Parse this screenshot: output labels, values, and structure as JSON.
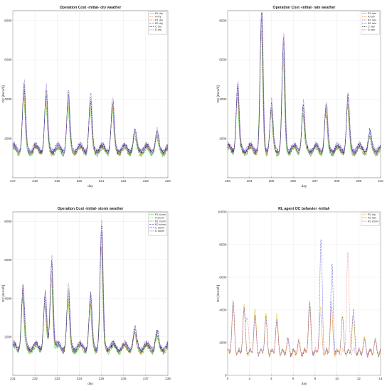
{
  "chart_data": [
    {
      "type": "line",
      "title": "Operation Cost -initial- dry weather",
      "xlabel": "day",
      "ylabel": "OC [Euro/h]",
      "xlim": [
        217,
        224
      ],
      "ylim": [
        0,
        8500
      ],
      "xticks": [
        217,
        218,
        219,
        220,
        221,
        222,
        223,
        224
      ],
      "yticks": [
        2000,
        4000,
        6000,
        8000
      ],
      "grid": true,
      "legend_position": "top-right",
      "series": [
        {
          "name": "RL dry",
          "color": "#2ecc2e",
          "dash": ""
        },
        {
          "name": "A dry",
          "color": "#e07a1f",
          "dash": "2,1"
        },
        {
          "name": "B1 dry",
          "color": "#444444",
          "dash": "0.8,0.8"
        },
        {
          "name": "B2 dry",
          "color": "#2b2bd9",
          "dash": "2,0.8,0.6,0.8"
        },
        {
          "name": "C dry",
          "color": "#111111",
          "dash": "1.5,1"
        },
        {
          "name": "D dry",
          "color": "#8a4fd6",
          "dash": "1,0.6"
        }
      ],
      "peaks": [
        {
          "x": 217.5,
          "y": 4400
        },
        {
          "x": 218.5,
          "y": 4100
        },
        {
          "x": 219.5,
          "y": 3900
        },
        {
          "x": 220.5,
          "y": 3750
        },
        {
          "x": 221.5,
          "y": 3600
        },
        {
          "x": 222.5,
          "y": 2150
        },
        {
          "x": 223.5,
          "y": 2100
        }
      ],
      "base": 1350
    },
    {
      "type": "line",
      "title": "Operation Cost -initial- rain weather",
      "xlabel": "day",
      "ylabel": "OC [Euro/h]",
      "xlim": [
        203,
        210
      ],
      "ylim": [
        0,
        8500
      ],
      "xticks": [
        203,
        204,
        205,
        206,
        207,
        208,
        209,
        210
      ],
      "yticks": [
        2000,
        4000,
        6000,
        8000
      ],
      "grid": true,
      "legend_position": "top-right",
      "series": [
        {
          "name": "RL rain",
          "color": "#2ecc2e",
          "dash": ""
        },
        {
          "name": "A rain",
          "color": "#e07a1f",
          "dash": "2,1"
        },
        {
          "name": "B1 rain",
          "color": "#444444",
          "dash": "0.8,0.8"
        },
        {
          "name": "B2 rain",
          "color": "#2b2bd9",
          "dash": "2,0.8,0.6,0.8"
        },
        {
          "name": "C rain",
          "color": "#111111",
          "dash": "1.5,1"
        },
        {
          "name": "D rain",
          "color": "#8a4fd6",
          "dash": "1,0.6"
        }
      ],
      "peaks": [
        {
          "x": 203.45,
          "y": 4450
        },
        {
          "x": 204.55,
          "y": 8100
        },
        {
          "x": 205.0,
          "y": 3450
        },
        {
          "x": 205.55,
          "y": 6600
        },
        {
          "x": 206.45,
          "y": 3450
        },
        {
          "x": 207.5,
          "y": 3400
        },
        {
          "x": 208.5,
          "y": 3800
        },
        {
          "x": 209.5,
          "y": 2150
        }
      ],
      "base": 1350
    },
    {
      "type": "line",
      "title": "Operation Cost -initial- storm weather",
      "xlabel": "day",
      "ylabel": "OC [Euro/h]",
      "xlim": [
        231,
        238
      ],
      "ylim": [
        0,
        8500
      ],
      "xticks": [
        231,
        232,
        233,
        234,
        235,
        236,
        237,
        238
      ],
      "yticks": [
        2000,
        4000,
        6000,
        8000
      ],
      "grid": true,
      "legend_position": "top-right",
      "series": [
        {
          "name": "RL storm",
          "color": "#2ecc2e",
          "dash": ""
        },
        {
          "name": "A storm",
          "color": "#e07a1f",
          "dash": "2,1"
        },
        {
          "name": "B1 storm",
          "color": "#444444",
          "dash": "0.8,0.8"
        },
        {
          "name": "B2 storm",
          "color": "#2b2bd9",
          "dash": "2,0.8,0.6,0.8"
        },
        {
          "name": "C storm",
          "color": "#111111",
          "dash": "1.5,1"
        },
        {
          "name": "D storm",
          "color": "#8a4fd6",
          "dash": "1,0.6"
        }
      ],
      "peaks": [
        {
          "x": 231.45,
          "y": 4300
        },
        {
          "x": 232.45,
          "y": 3950
        },
        {
          "x": 232.75,
          "y": 5750
        },
        {
          "x": 233.5,
          "y": 4150
        },
        {
          "x": 234.5,
          "y": 3850
        },
        {
          "x": 235.0,
          "y": 7300
        },
        {
          "x": 236.5,
          "y": 2200
        },
        {
          "x": 237.5,
          "y": 2050
        }
      ],
      "base": 1350
    },
    {
      "type": "line",
      "title": "RL agent OC behavior -initial-",
      "xlabel": "day",
      "ylabel": "OC [Euro/h]",
      "xlim": [
        0,
        14
      ],
      "ylim": [
        0,
        10000
      ],
      "xticks": [
        0,
        2,
        4,
        6,
        8,
        10,
        12,
        14
      ],
      "yticks": [
        0,
        2000,
        4000,
        6000,
        8000,
        10000
      ],
      "grid": true,
      "legend_position": "top-right",
      "series": [
        {
          "name": "RL dry",
          "color": "#e8c21a",
          "dash": "",
          "peaks": [
            {
              "x": 0.5,
              "y": 4300
            },
            {
              "x": 1.5,
              "y": 4100
            },
            {
              "x": 2.5,
              "y": 3900
            },
            {
              "x": 3.5,
              "y": 3700
            },
            {
              "x": 4.5,
              "y": 3600
            },
            {
              "x": 5.5,
              "y": 2100
            },
            {
              "x": 6.5,
              "y": 2050
            },
            {
              "x": 7.5,
              "y": 4300
            },
            {
              "x": 8.5,
              "y": 4000
            },
            {
              "x": 9.5,
              "y": 3900
            },
            {
              "x": 10.5,
              "y": 3600
            },
            {
              "x": 11.5,
              "y": 3500
            },
            {
              "x": 12.5,
              "y": 2100
            },
            {
              "x": 13.5,
              "y": 2050
            }
          ]
        },
        {
          "name": "RL rain",
          "color": "#2b2bd9",
          "dash": "2,0.8,0.6,0.8",
          "peaks": [
            {
              "x": 0.5,
              "y": 4400
            },
            {
              "x": 1.5,
              "y": 3900
            },
            {
              "x": 2.5,
              "y": 3500
            },
            {
              "x": 3.5,
              "y": 3400
            },
            {
              "x": 4.5,
              "y": 3300
            },
            {
              "x": 5.5,
              "y": 2000
            },
            {
              "x": 6.5,
              "y": 1900
            },
            {
              "x": 7.5,
              "y": 4400
            },
            {
              "x": 8.55,
              "y": 8100
            },
            {
              "x": 9.55,
              "y": 6600
            },
            {
              "x": 10.5,
              "y": 3400
            },
            {
              "x": 11.5,
              "y": 3800
            },
            {
              "x": 12.5,
              "y": 2100
            },
            {
              "x": 13.5,
              "y": 2000
            }
          ]
        },
        {
          "name": "RL storm",
          "color": "#e0555a",
          "dash": "1,0.8",
          "peaks": [
            {
              "x": 0.5,
              "y": 4200
            },
            {
              "x": 1.5,
              "y": 3900
            },
            {
              "x": 1.8,
              "y": 3600
            },
            {
              "x": 2.5,
              "y": 3500
            },
            {
              "x": 3.5,
              "y": 3200
            },
            {
              "x": 4.5,
              "y": 3100
            },
            {
              "x": 5.5,
              "y": 2100
            },
            {
              "x": 6.5,
              "y": 1900
            },
            {
              "x": 7.5,
              "y": 3900
            },
            {
              "x": 8.5,
              "y": 3700
            },
            {
              "x": 9.5,
              "y": 4300
            },
            {
              "x": 11.0,
              "y": 7400
            },
            {
              "x": 12.5,
              "y": 2200
            },
            {
              "x": 13.5,
              "y": 2050
            }
          ]
        }
      ],
      "base": 1350
    }
  ]
}
